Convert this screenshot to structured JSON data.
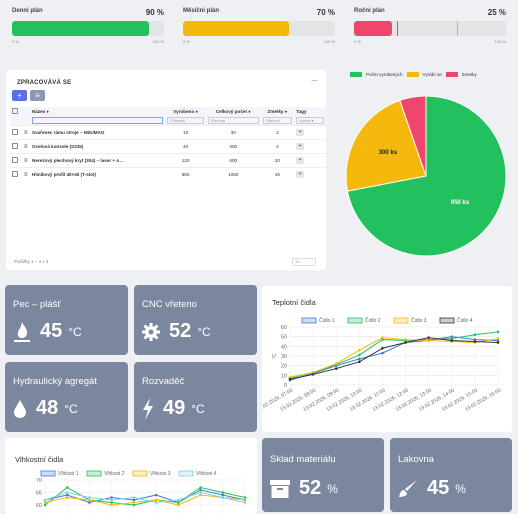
{
  "plans": [
    {
      "label": "Denní plán",
      "percent": "90 %",
      "value": 0.9,
      "color": "#22c15e",
      "marker": null,
      "tick_min": "0 %",
      "tick_max": "100 %"
    },
    {
      "label": "Měsíční plán",
      "percent": "70 %",
      "value": 0.7,
      "color": "#f5b90d",
      "marker": null,
      "tick_min": "0 %",
      "tick_max": "100 %"
    },
    {
      "label": "Roční plán",
      "percent": "25 %",
      "value": 0.25,
      "color": "#f0466e",
      "marker": 0.68,
      "tick_min": "0 %",
      "tick_max": "100 %"
    }
  ],
  "table": {
    "title": "ZPRACOVÁVÁ SE",
    "more_icon": "ellipsis-icon",
    "add_label": "+",
    "list_label": "≡",
    "columns": [
      "Název ♦",
      "Vyrobeno ♦",
      "Celkový počet ♦",
      "Zmetky ♦",
      "Tagy"
    ],
    "filters": [
      "",
      "Filtrovat",
      "Filtrovat",
      "Filtrovat",
      "Vybrat ▾"
    ],
    "rows": [
      {
        "name": "Svařenec rámu stroje – MIG/MAG",
        "made": "10",
        "total": "30",
        "scrap": "3"
      },
      {
        "name": "Ocelová konzole (S235)",
        "made": "40",
        "total": "300",
        "scrap": "2"
      },
      {
        "name": "Nerezový plechový kryt (304) – laser + o…",
        "made": "120",
        "total": "600",
        "scrap": "20"
      },
      {
        "name": "Hliníkový profil 40×40 (T-slot)",
        "made": "950",
        "total": "1050",
        "scrap": "45"
      }
    ],
    "pager": "Položky 1 – 4 z 4",
    "page_size": "10"
  },
  "pie": {
    "legend": [
      "Počet vyrobených",
      "Vyrábí se",
      "Zmetky"
    ],
    "colors": [
      "#22c15e",
      "#f5b90d",
      "#f0466e"
    ],
    "values": [
      950,
      300,
      70
    ],
    "labels": [
      "950 ks",
      "300 ks",
      ""
    ]
  },
  "tiles": [
    {
      "name": "Pec – plášť",
      "value": "45",
      "unit": "°C",
      "icon": "flame-icon"
    },
    {
      "name": "CNC vřeteno",
      "value": "52",
      "unit": "°C",
      "icon": "gear-icon"
    },
    {
      "name": "Hydraulický agregát",
      "value": "48",
      "unit": "°C",
      "icon": "drop-icon"
    },
    {
      "name": "Rozvaděč",
      "value": "49",
      "unit": "°C",
      "icon": "bolt-icon"
    },
    {
      "name": "Sklad materiálu",
      "value": "52",
      "unit": "%",
      "icon": "archive-icon"
    },
    {
      "name": "Lakovna",
      "value": "45",
      "unit": "%",
      "icon": "brush-icon"
    }
  ],
  "chart_data": [
    {
      "type": "line",
      "title": "Teplotní čidla",
      "ylabel": "°C",
      "ylim": [
        0,
        60
      ],
      "yticks": [
        0,
        10,
        20,
        30,
        40,
        50,
        60
      ],
      "x": [
        "13.02.2026, 07:00",
        "13.02.2026, 08:00",
        "13.02.2026, 09:00",
        "13.02.2026, 10:00",
        "13.02.2026, 11:00",
        "13.02.2026, 12:00",
        "13.02.2026, 13:00",
        "13.02.2026, 14:00",
        "13.02.2026, 15:00",
        "13.02.2026, 16:00"
      ],
      "grid": true,
      "legend": "top",
      "series": [
        {
          "name": "Čidlo 1",
          "color": "#3b7be0",
          "values": [
            5,
            12,
            20,
            27,
            33,
            44,
            46,
            50,
            47,
            46
          ]
        },
        {
          "name": "Čidlo 2",
          "color": "#22c15e",
          "values": [
            7,
            13,
            21,
            31,
            47,
            46,
            47,
            48,
            52,
            55
          ]
        },
        {
          "name": "Čidlo 3",
          "color": "#f5b90d",
          "values": [
            8,
            13,
            22,
            36,
            49,
            47,
            46,
            45,
            44,
            48
          ]
        },
        {
          "name": "Čidlo 4",
          "color": "#333333",
          "values": [
            6,
            11,
            17,
            24,
            38,
            44,
            49,
            46,
            45,
            44
          ]
        }
      ]
    },
    {
      "type": "line",
      "title": "Vlhkostní čidla",
      "ylim": [
        50,
        70
      ],
      "yticks": [
        50,
        60,
        65,
        70
      ],
      "grid": true,
      "legend": "top",
      "series": [
        {
          "name": "Vlhkost 1",
          "color": "#3b7be0",
          "values": [
            62,
            64,
            61,
            63,
            62,
            64,
            61,
            66,
            64,
            62
          ]
        },
        {
          "name": "Vlhkost 2",
          "color": "#22c15e",
          "values": [
            60,
            67,
            62,
            61,
            60,
            62,
            61,
            67,
            65,
            63
          ]
        },
        {
          "name": "Vlhkost 3",
          "color": "#f5b90d",
          "values": [
            61,
            63,
            62,
            60,
            61,
            62,
            60,
            64,
            63,
            62
          ]
        },
        {
          "name": "Vlhkost 4",
          "color": "#7dd3e8",
          "values": [
            62,
            65,
            63,
            62,
            63,
            61,
            62,
            65,
            63,
            61
          ]
        }
      ]
    }
  ]
}
